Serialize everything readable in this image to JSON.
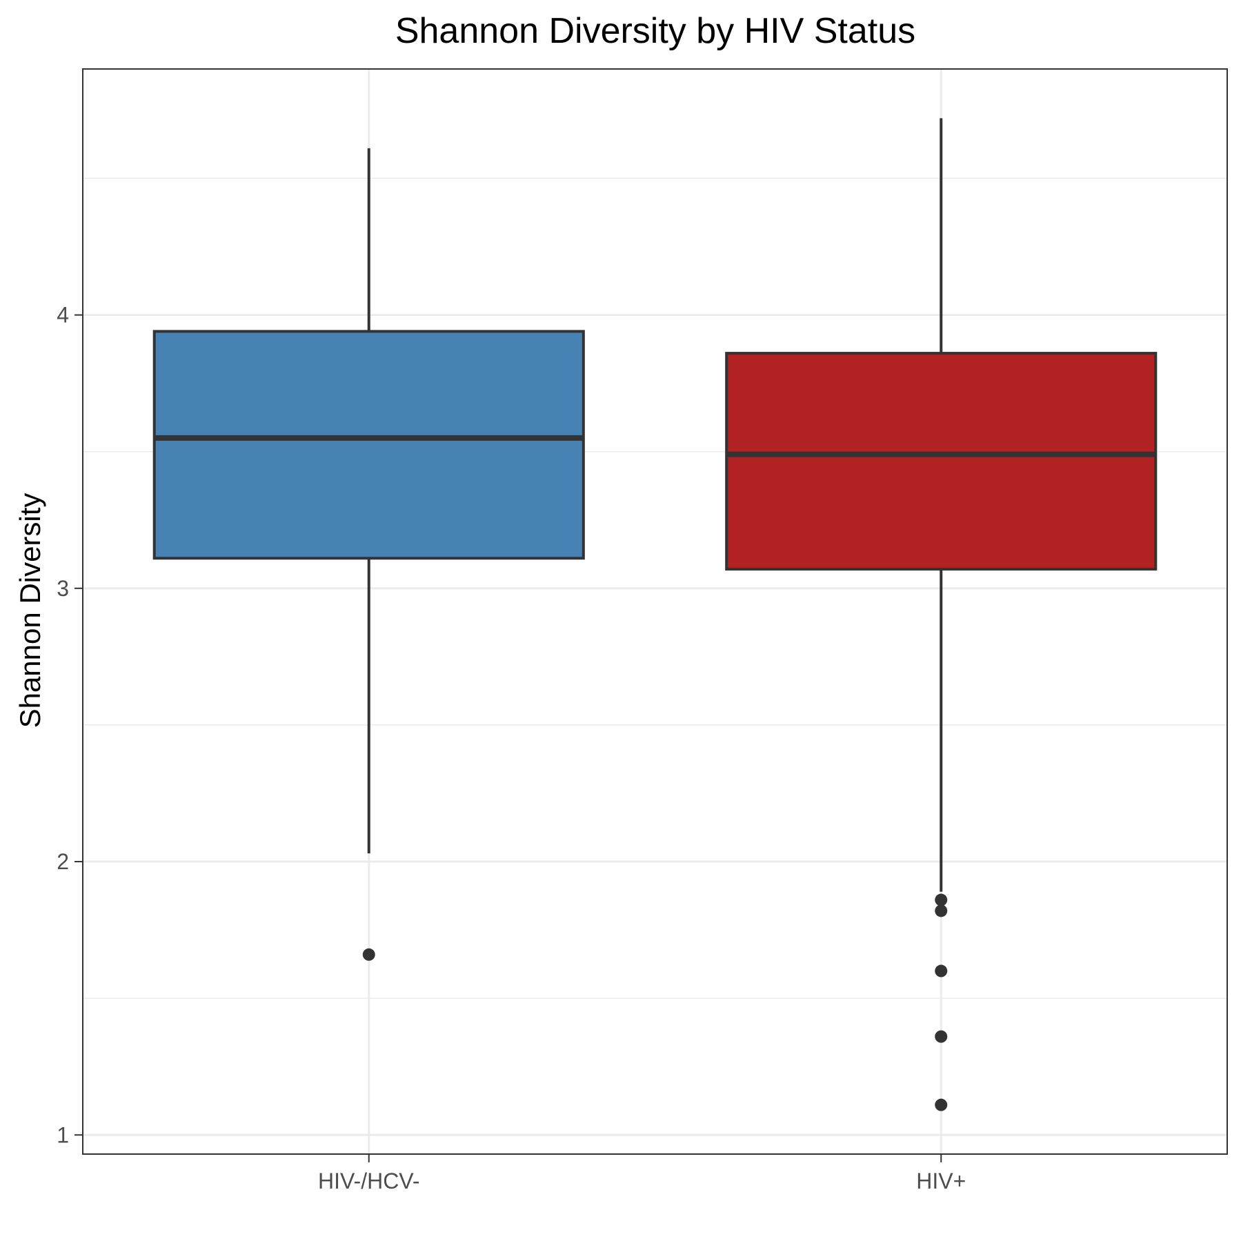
{
  "chart_data": {
    "type": "boxplot",
    "title": "Shannon Diversity by HIV Status",
    "xlabel": "",
    "ylabel": "Shannon Diversity",
    "ylim": [
      0.93,
      4.9
    ],
    "yticks": [
      1,
      2,
      3,
      4
    ],
    "ytick_labels": [
      "1",
      "2",
      "3",
      "4"
    ],
    "minor_yticks": [
      1.5,
      2.5,
      3.5,
      4.5
    ],
    "grid": true,
    "legend": "none",
    "categories": [
      "HIV-/HCV-",
      "HIV+"
    ],
    "boxes": [
      {
        "category": "HIV-/HCV-",
        "color": "#4682b4",
        "whisker_low": 2.03,
        "q1": 3.11,
        "median": 3.55,
        "q3": 3.94,
        "whisker_high": 4.61,
        "outliers": [
          1.66
        ]
      },
      {
        "category": "HIV+",
        "color": "#b22222",
        "whisker_low": 1.89,
        "q1": 3.07,
        "median": 3.49,
        "q3": 3.86,
        "whisker_high": 4.72,
        "outliers": [
          1.86,
          1.82,
          1.6,
          1.36,
          1.11
        ]
      }
    ],
    "colors": {
      "outline": "#333333",
      "grid": "#ebebeb",
      "panel_border": "#333333"
    }
  }
}
